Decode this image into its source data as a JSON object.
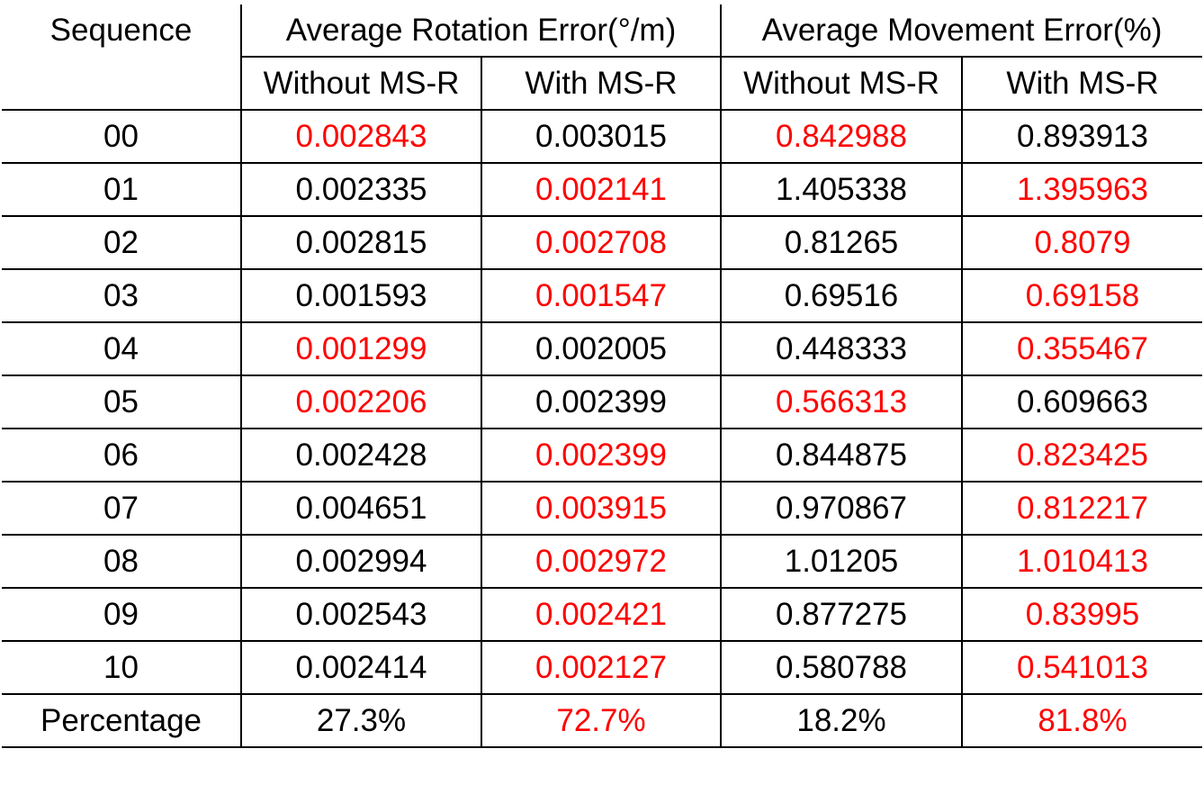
{
  "headers": {
    "sequence": "Sequence",
    "rotation_group": "Average Rotation Error(°/m)",
    "movement_group": "Average Movement Error(%)",
    "without": "Without MS-R",
    "with": "With MS-R"
  },
  "highlight_color": "#ff0000",
  "rows": [
    {
      "seq": "00",
      "rot_without": "0.002843",
      "rot_with": "0.003015",
      "mov_without": "0.842988",
      "mov_with": "0.893913",
      "rot_best": "without",
      "mov_best": "without"
    },
    {
      "seq": "01",
      "rot_without": "0.002335",
      "rot_with": "0.002141",
      "mov_without": "1.405338",
      "mov_with": "1.395963",
      "rot_best": "with",
      "mov_best": "with"
    },
    {
      "seq": "02",
      "rot_without": "0.002815",
      "rot_with": "0.002708",
      "mov_without": "0.81265",
      "mov_with": "0.8079",
      "rot_best": "with",
      "mov_best": "with"
    },
    {
      "seq": "03",
      "rot_without": "0.001593",
      "rot_with": "0.001547",
      "mov_without": "0.69516",
      "mov_with": "0.69158",
      "rot_best": "with",
      "mov_best": "with"
    },
    {
      "seq": "04",
      "rot_without": "0.001299",
      "rot_with": "0.002005",
      "mov_without": "0.448333",
      "mov_with": "0.355467",
      "rot_best": "without",
      "mov_best": "with"
    },
    {
      "seq": "05",
      "rot_without": "0.002206",
      "rot_with": "0.002399",
      "mov_without": "0.566313",
      "mov_with": "0.609663",
      "rot_best": "without",
      "mov_best": "without"
    },
    {
      "seq": "06",
      "rot_without": "0.002428",
      "rot_with": "0.002399",
      "mov_without": "0.844875",
      "mov_with": "0.823425",
      "rot_best": "with",
      "mov_best": "with"
    },
    {
      "seq": "07",
      "rot_without": "0.004651",
      "rot_with": "0.003915",
      "mov_without": "0.970867",
      "mov_with": "0.812217",
      "rot_best": "with",
      "mov_best": "with"
    },
    {
      "seq": "08",
      "rot_without": "0.002994",
      "rot_with": "0.002972",
      "mov_without": "1.01205",
      "mov_with": "1.010413",
      "rot_best": "with",
      "mov_best": "with"
    },
    {
      "seq": "09",
      "rot_without": "0.002543",
      "rot_with": "0.002421",
      "mov_without": "0.877275",
      "mov_with": "0.83995",
      "rot_best": "with",
      "mov_best": "with"
    },
    {
      "seq": "10",
      "rot_without": "0.002414",
      "rot_with": "0.002127",
      "mov_without": "0.580788",
      "mov_with": "0.541013",
      "rot_best": "with",
      "mov_best": "with"
    }
  ],
  "percentage": {
    "label": "Percentage",
    "rot_without": "27.3%",
    "rot_with": "72.7%",
    "mov_without": "18.2%",
    "mov_with": "81.8%",
    "rot_best": "with",
    "mov_best": "with"
  }
}
